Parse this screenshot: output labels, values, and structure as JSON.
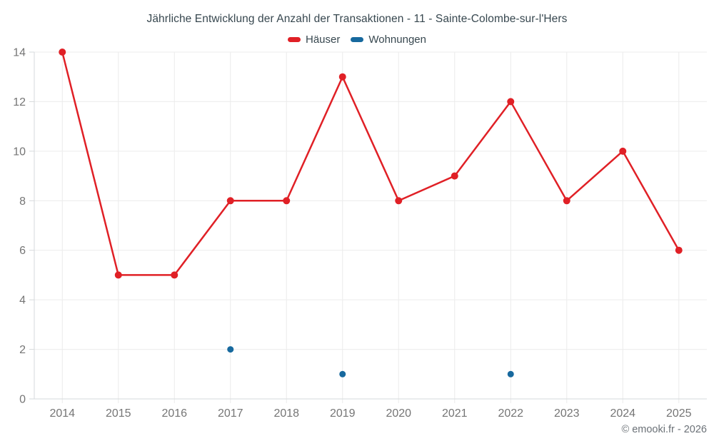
{
  "chart_data": {
    "type": "line",
    "title": "Jährliche Entwicklung der Anzahl der Transaktionen - 11 - Sainte-Colombe-sur-l'Hers",
    "categories": [
      "2014",
      "2015",
      "2016",
      "2017",
      "2018",
      "2019",
      "2020",
      "2021",
      "2022",
      "2023",
      "2024",
      "2025"
    ],
    "series": [
      {
        "name": "Häuser",
        "color": "#e02026",
        "point_radius": 5,
        "values": [
          14,
          5,
          5,
          8,
          8,
          13,
          8,
          9,
          12,
          8,
          10,
          6
        ]
      },
      {
        "name": "Wohnungen",
        "color": "#17699e",
        "point_radius": 4.5,
        "values": [
          null,
          null,
          null,
          2,
          null,
          1,
          null,
          null,
          1,
          null,
          null,
          null
        ]
      }
    ],
    "xlabel": "",
    "ylabel": "",
    "ylim": [
      0,
      14
    ],
    "ytick_step": 2,
    "grid": true,
    "grid_color": "#ececec",
    "axis_color": "#d6d9dc",
    "legend_position": "top"
  },
  "footer": {
    "copyright": "© emooki.fr - 2026"
  }
}
